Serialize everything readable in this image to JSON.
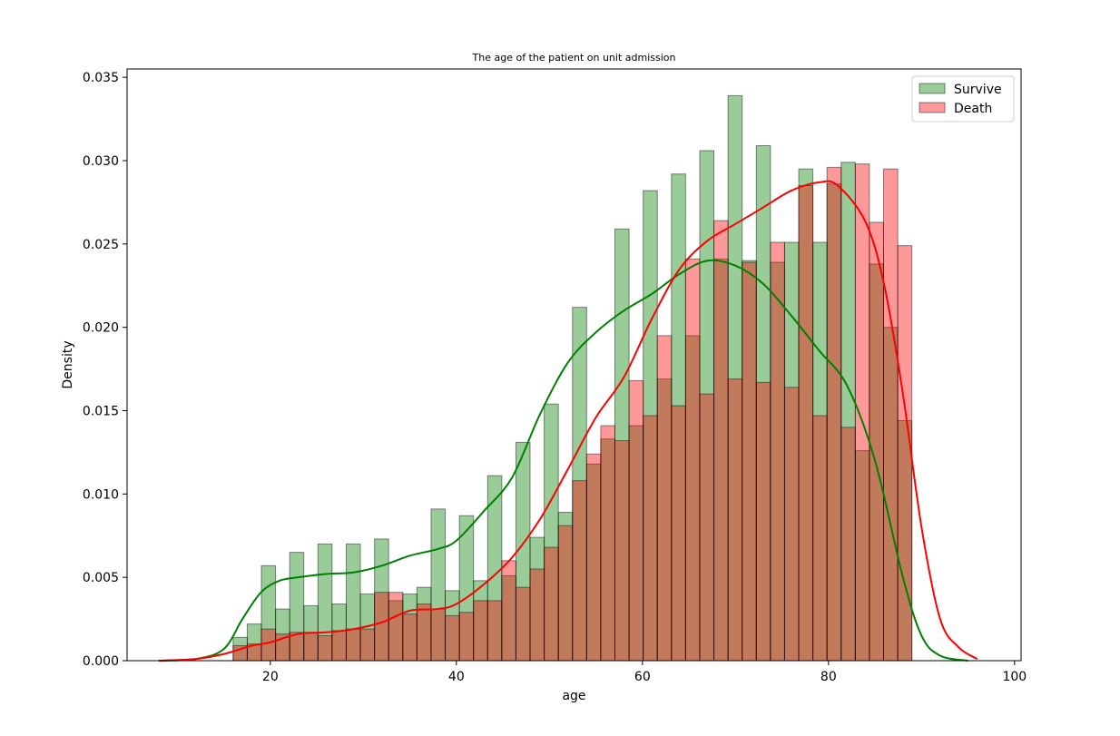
{
  "chart_data": {
    "type": "bar",
    "title": "The age of the patient on unit admission",
    "xlabel": "age",
    "ylabel": "Density",
    "xlim": [
      4.6,
      100.7
    ],
    "ylim": [
      0,
      0.0355
    ],
    "x_ticks": [
      20,
      40,
      60,
      80,
      100
    ],
    "x_tick_labels": [
      "20",
      "40",
      "60",
      "80",
      "100"
    ],
    "y_ticks": [
      0.0,
      0.005,
      0.01,
      0.015,
      0.02,
      0.025,
      0.03,
      0.035
    ],
    "y_tick_labels": [
      "0.000",
      "0.005",
      "0.010",
      "0.015",
      "0.020",
      "0.025",
      "0.030",
      "0.035"
    ],
    "grid": false,
    "legend": {
      "placement": "top-right",
      "entries": [
        "Survive",
        "Death"
      ]
    },
    "bins": {
      "start": 16.0,
      "width": 1.52,
      "count": 48
    },
    "series": [
      {
        "name": "Survive",
        "kind": "histogram",
        "color": "#008000",
        "fill_alpha": 0.4,
        "values": [
          0.0014,
          0.0022,
          0.0057,
          0.0031,
          0.0065,
          0.0033,
          0.007,
          0.0034,
          0.007,
          0.004,
          0.0073,
          0.0036,
          0.004,
          0.0044,
          0.0091,
          0.0042,
          0.0087,
          0.0048,
          0.0111,
          0.0051,
          0.0131,
          0.0074,
          0.0154,
          0.0089,
          0.0212,
          0.0118,
          0.0133,
          0.0259,
          0.0141,
          0.0282,
          0.0169,
          0.0292,
          0.0195,
          0.0306,
          0.0241,
          0.0339,
          0.024,
          0.0309,
          0.0239,
          0.0251,
          0.0295,
          0.0251,
          0.0286,
          0.0299,
          0.0126,
          0.0238,
          0.02,
          0.0144
        ]
      },
      {
        "name": "Death",
        "kind": "histogram",
        "color": "#ff0000",
        "fill_alpha": 0.4,
        "values": [
          0.0009,
          0.001,
          0.0019,
          0.0016,
          0.0017,
          0.0017,
          0.0015,
          0.0018,
          0.0019,
          0.0019,
          0.0041,
          0.0041,
          0.0028,
          0.0034,
          0.0031,
          0.0027,
          0.0029,
          0.0036,
          0.0036,
          0.006,
          0.0044,
          0.0055,
          0.0068,
          0.0081,
          0.0108,
          0.0124,
          0.0141,
          0.0132,
          0.0168,
          0.0147,
          0.0195,
          0.0153,
          0.0241,
          0.016,
          0.0264,
          0.0169,
          0.0239,
          0.0167,
          0.0251,
          0.0164,
          0.0285,
          0.0147,
          0.0296,
          0.014,
          0.0298,
          0.0263,
          0.0295,
          0.0249
        ]
      },
      {
        "name": "Survive",
        "kind": "kde",
        "color": "#008000",
        "x": [
          8,
          12,
          15,
          17,
          19,
          21,
          23,
          26,
          29,
          32,
          35,
          38,
          40,
          43,
          46,
          49,
          52,
          55,
          58,
          61,
          64,
          67,
          70,
          73,
          76,
          79,
          82,
          85,
          88,
          90,
          92,
          95
        ],
        "y": [
          0.0,
          0.0001,
          0.0007,
          0.0025,
          0.0041,
          0.0048,
          0.005,
          0.0052,
          0.0053,
          0.0057,
          0.0063,
          0.0067,
          0.0072,
          0.009,
          0.011,
          0.0148,
          0.0179,
          0.0197,
          0.021,
          0.022,
          0.0232,
          0.024,
          0.0237,
          0.0226,
          0.0207,
          0.0186,
          0.0165,
          0.012,
          0.005,
          0.0015,
          0.0003,
          0.0
        ]
      },
      {
        "name": "Death",
        "kind": "kde",
        "color": "#ff0000",
        "x": [
          8,
          12,
          15,
          18,
          20,
          23,
          26,
          29,
          32,
          35,
          38,
          40,
          43,
          46,
          49,
          52,
          55,
          58,
          61,
          64,
          67,
          70,
          73,
          76,
          79,
          81,
          84,
          86,
          88,
          90,
          92,
          94,
          96
        ],
        "y": [
          0.0,
          0.0001,
          0.0004,
          0.0009,
          0.0011,
          0.0016,
          0.0017,
          0.0019,
          0.0023,
          0.003,
          0.0031,
          0.0034,
          0.0046,
          0.0062,
          0.0085,
          0.0115,
          0.0146,
          0.017,
          0.0205,
          0.0235,
          0.0252,
          0.0262,
          0.0272,
          0.0282,
          0.0287,
          0.0285,
          0.0263,
          0.0225,
          0.016,
          0.008,
          0.0025,
          0.0008,
          0.0001
        ]
      }
    ]
  }
}
